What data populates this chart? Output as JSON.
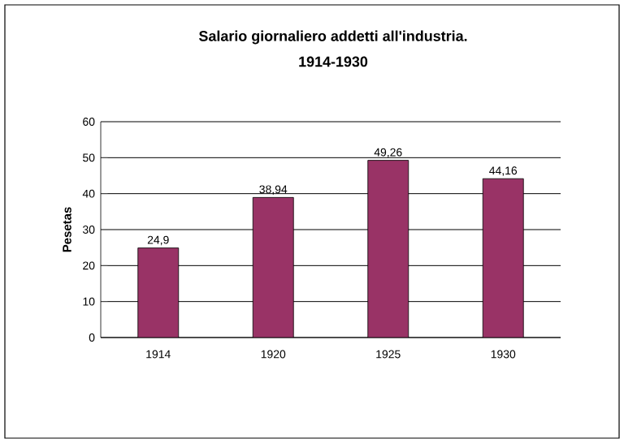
{
  "chart_data": {
    "type": "bar",
    "title": "Salario giornaliero addetti all'industria.",
    "subtitle": "1914-1930",
    "ylabel": "Pesetas",
    "categories": [
      "1914",
      "1920",
      "1925",
      "1930"
    ],
    "values": [
      24.9,
      38.94,
      49.26,
      44.16
    ],
    "value_labels": [
      "24,9",
      "38,94",
      "49,26",
      "44,16"
    ],
    "color": "#993366",
    "ylim": [
      0,
      60
    ],
    "yticks": [
      0,
      10,
      20,
      30,
      40,
      50,
      60
    ],
    "grid": "y"
  }
}
